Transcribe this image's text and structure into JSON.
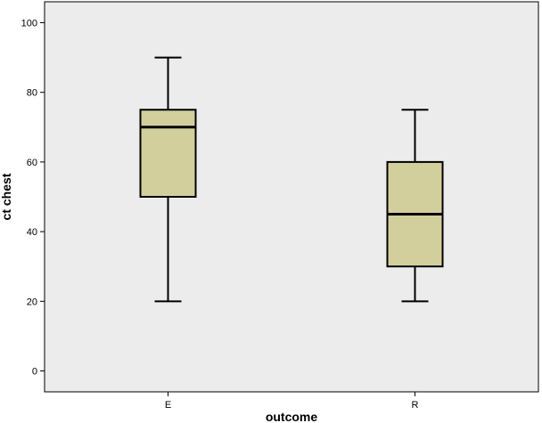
{
  "chart_data": {
    "type": "boxplot",
    "xlabel": "outcome",
    "ylabel": "ct chest",
    "ylim": [
      -6,
      106
    ],
    "yticks": [
      0,
      20,
      40,
      60,
      80,
      100
    ],
    "categories": [
      "E",
      "R"
    ],
    "boxes": [
      {
        "category": "E",
        "min": 20,
        "q1": 50,
        "median": 70,
        "q3": 75,
        "max": 90
      },
      {
        "category": "R",
        "min": 20,
        "q1": 30,
        "median": 45,
        "q3": 60,
        "max": 75
      }
    ],
    "grid": false,
    "colors": {
      "plot_background": "#ececec",
      "box_fill": "#d3cf9c",
      "line": "#000000"
    }
  }
}
